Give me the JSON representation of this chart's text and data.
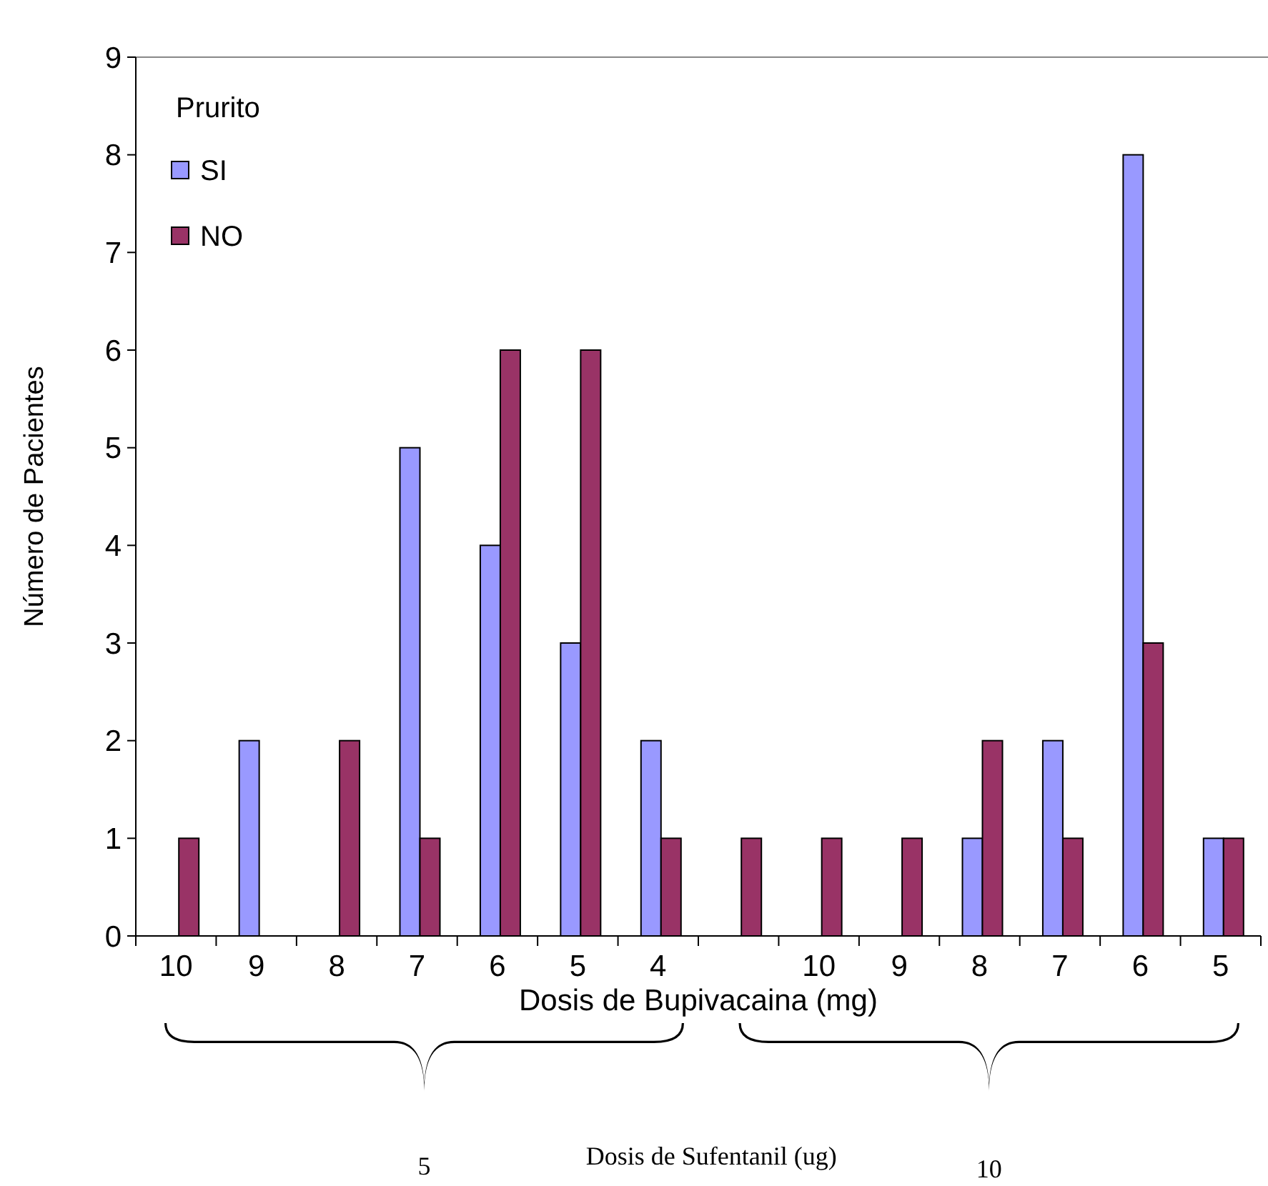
{
  "chart_data": {
    "type": "bar",
    "xlabel": "Dosis de Bupivacaina (mg)",
    "ylabel": "Número de Pacientes",
    "legend_title": "Prurito",
    "legend": "top left",
    "categories": [
      "10",
      "9",
      "8",
      "7",
      "6",
      "5",
      "4",
      null,
      "10",
      "9",
      "8",
      "7",
      "6",
      "5"
    ],
    "series": [
      {
        "name": "SI",
        "color": "#9999ff",
        "values": [
          0,
          2,
          0,
          5,
          4,
          3,
          2,
          0,
          0,
          0,
          1,
          2,
          8,
          1
        ]
      },
      {
        "name": "NO",
        "color": "#993366",
        "values": [
          1,
          0,
          2,
          1,
          6,
          6,
          1,
          1,
          1,
          1,
          2,
          1,
          3,
          1
        ]
      }
    ],
    "ylim": [
      0,
      9
    ],
    "yticks": [
      0,
      1,
      2,
      3,
      4,
      5,
      6,
      7,
      8,
      9
    ],
    "grid": false,
    "annotations": [
      "Dosis de Sufentanil (ug)",
      "5",
      "10"
    ]
  }
}
